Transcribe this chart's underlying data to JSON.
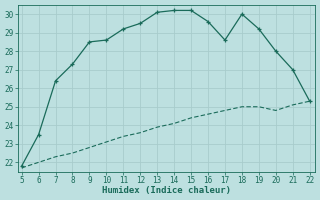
{
  "xlabel": "Humidex (Indice chaleur)",
  "x_values": [
    5,
    6,
    7,
    8,
    9,
    10,
    11,
    12,
    13,
    14,
    15,
    16,
    17,
    18,
    19,
    20,
    21,
    22
  ],
  "y_main": [
    21.8,
    23.5,
    26.4,
    27.3,
    28.5,
    28.6,
    29.2,
    29.5,
    30.1,
    30.2,
    30.2,
    29.6,
    28.6,
    30.0,
    29.2,
    28.0,
    27.0,
    25.3
  ],
  "y_min": [
    21.7,
    22.0,
    22.3,
    22.5,
    22.8,
    23.1,
    23.4,
    23.6,
    23.9,
    24.1,
    24.4,
    24.6,
    24.8,
    25.0,
    25.0,
    24.8,
    25.1,
    25.3
  ],
  "line_color": "#1a6b5a",
  "bg_color": "#bde0e0",
  "grid_color": "#a8cccc",
  "ylim_min": 21.5,
  "ylim_max": 30.5,
  "xlim_min": 4.8,
  "xlim_max": 22.3,
  "yticks": [
    22,
    23,
    24,
    25,
    26,
    27,
    28,
    29,
    30
  ],
  "xticks": [
    5,
    6,
    7,
    8,
    9,
    10,
    11,
    12,
    13,
    14,
    15,
    16,
    17,
    18,
    19,
    20,
    21,
    22
  ],
  "tick_fontsize": 5.5,
  "xlabel_fontsize": 6.5
}
